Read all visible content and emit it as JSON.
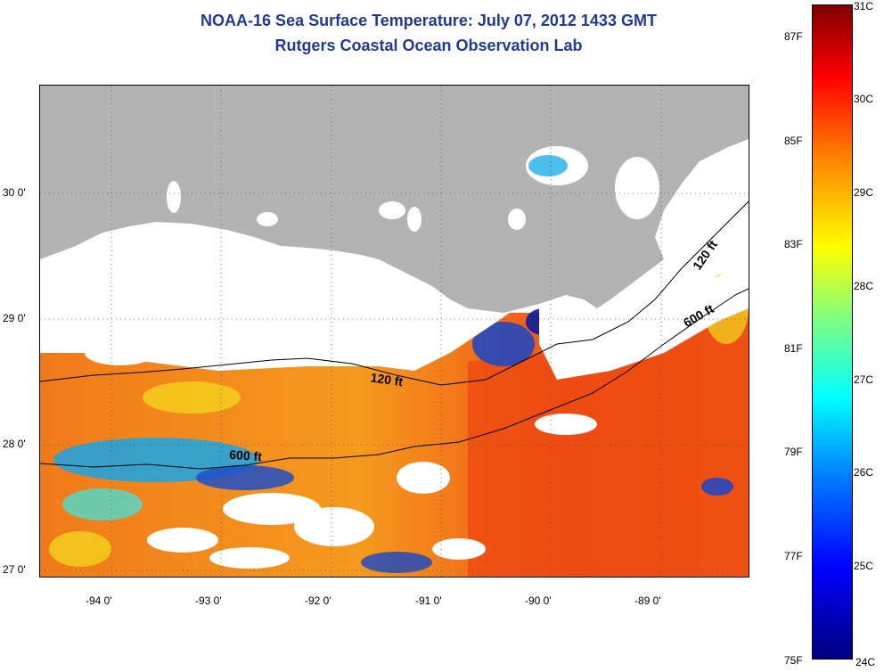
{
  "title": {
    "line1": "NOAA-16 Sea Surface Temperature:  July 07, 2012 1433 GMT",
    "line2": "Rutgers Coastal Ocean Observation Lab"
  },
  "axes": {
    "lon_ticks": [
      "-94 0'",
      "-93 0'",
      "-92 0'",
      "-91 0'",
      "-90 0'",
      "-89 0'"
    ],
    "lat_ticks": [
      "30 0'",
      "29 0'",
      "28 0'",
      "27 0'"
    ]
  },
  "contours": {
    "shallow_label": "120 ft",
    "deep_label": "600 ft"
  },
  "colorbar": {
    "fahrenheit": [
      "87F",
      "85F",
      "83F",
      "81F",
      "79F",
      "77F",
      "75F"
    ],
    "celsius": [
      "31C",
      "30C",
      "29C",
      "28C",
      "27C",
      "26C",
      "25C",
      "24C"
    ],
    "colors": [
      "#00007f",
      "#0000ff",
      "#007fff",
      "#00ffff",
      "#7fff7f",
      "#ffff00",
      "#ff7f00",
      "#ff0000",
      "#7f0000"
    ]
  },
  "colors": {
    "land": "#b3b3b3",
    "no_data": "#ffffff",
    "title": "#1f3a9a"
  }
}
